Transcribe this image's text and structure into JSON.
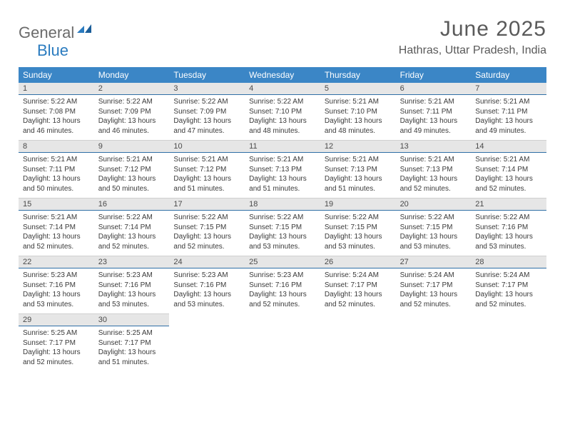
{
  "brand": {
    "general": "General",
    "blue": "Blue"
  },
  "title": "June 2025",
  "location": "Hathras, Uttar Pradesh, India",
  "colors": {
    "header_bg": "#3b86c6",
    "header_text": "#ffffff",
    "daynum_bg": "#e6e6e6",
    "rule": "#2f6fa6",
    "body_text": "#3a3a3a",
    "title_text": "#5a5a5a"
  },
  "weekdays": [
    "Sunday",
    "Monday",
    "Tuesday",
    "Wednesday",
    "Thursday",
    "Friday",
    "Saturday"
  ],
  "weeks": [
    [
      {
        "n": "1",
        "sr": "Sunrise: 5:22 AM",
        "ss": "Sunset: 7:08 PM",
        "dl1": "Daylight: 13 hours",
        "dl2": "and 46 minutes."
      },
      {
        "n": "2",
        "sr": "Sunrise: 5:22 AM",
        "ss": "Sunset: 7:09 PM",
        "dl1": "Daylight: 13 hours",
        "dl2": "and 46 minutes."
      },
      {
        "n": "3",
        "sr": "Sunrise: 5:22 AM",
        "ss": "Sunset: 7:09 PM",
        "dl1": "Daylight: 13 hours",
        "dl2": "and 47 minutes."
      },
      {
        "n": "4",
        "sr": "Sunrise: 5:22 AM",
        "ss": "Sunset: 7:10 PM",
        "dl1": "Daylight: 13 hours",
        "dl2": "and 48 minutes."
      },
      {
        "n": "5",
        "sr": "Sunrise: 5:21 AM",
        "ss": "Sunset: 7:10 PM",
        "dl1": "Daylight: 13 hours",
        "dl2": "and 48 minutes."
      },
      {
        "n": "6",
        "sr": "Sunrise: 5:21 AM",
        "ss": "Sunset: 7:11 PM",
        "dl1": "Daylight: 13 hours",
        "dl2": "and 49 minutes."
      },
      {
        "n": "7",
        "sr": "Sunrise: 5:21 AM",
        "ss": "Sunset: 7:11 PM",
        "dl1": "Daylight: 13 hours",
        "dl2": "and 49 minutes."
      }
    ],
    [
      {
        "n": "8",
        "sr": "Sunrise: 5:21 AM",
        "ss": "Sunset: 7:11 PM",
        "dl1": "Daylight: 13 hours",
        "dl2": "and 50 minutes."
      },
      {
        "n": "9",
        "sr": "Sunrise: 5:21 AM",
        "ss": "Sunset: 7:12 PM",
        "dl1": "Daylight: 13 hours",
        "dl2": "and 50 minutes."
      },
      {
        "n": "10",
        "sr": "Sunrise: 5:21 AM",
        "ss": "Sunset: 7:12 PM",
        "dl1": "Daylight: 13 hours",
        "dl2": "and 51 minutes."
      },
      {
        "n": "11",
        "sr": "Sunrise: 5:21 AM",
        "ss": "Sunset: 7:13 PM",
        "dl1": "Daylight: 13 hours",
        "dl2": "and 51 minutes."
      },
      {
        "n": "12",
        "sr": "Sunrise: 5:21 AM",
        "ss": "Sunset: 7:13 PM",
        "dl1": "Daylight: 13 hours",
        "dl2": "and 51 minutes."
      },
      {
        "n": "13",
        "sr": "Sunrise: 5:21 AM",
        "ss": "Sunset: 7:13 PM",
        "dl1": "Daylight: 13 hours",
        "dl2": "and 52 minutes."
      },
      {
        "n": "14",
        "sr": "Sunrise: 5:21 AM",
        "ss": "Sunset: 7:14 PM",
        "dl1": "Daylight: 13 hours",
        "dl2": "and 52 minutes."
      }
    ],
    [
      {
        "n": "15",
        "sr": "Sunrise: 5:21 AM",
        "ss": "Sunset: 7:14 PM",
        "dl1": "Daylight: 13 hours",
        "dl2": "and 52 minutes."
      },
      {
        "n": "16",
        "sr": "Sunrise: 5:22 AM",
        "ss": "Sunset: 7:14 PM",
        "dl1": "Daylight: 13 hours",
        "dl2": "and 52 minutes."
      },
      {
        "n": "17",
        "sr": "Sunrise: 5:22 AM",
        "ss": "Sunset: 7:15 PM",
        "dl1": "Daylight: 13 hours",
        "dl2": "and 52 minutes."
      },
      {
        "n": "18",
        "sr": "Sunrise: 5:22 AM",
        "ss": "Sunset: 7:15 PM",
        "dl1": "Daylight: 13 hours",
        "dl2": "and 53 minutes."
      },
      {
        "n": "19",
        "sr": "Sunrise: 5:22 AM",
        "ss": "Sunset: 7:15 PM",
        "dl1": "Daylight: 13 hours",
        "dl2": "and 53 minutes."
      },
      {
        "n": "20",
        "sr": "Sunrise: 5:22 AM",
        "ss": "Sunset: 7:15 PM",
        "dl1": "Daylight: 13 hours",
        "dl2": "and 53 minutes."
      },
      {
        "n": "21",
        "sr": "Sunrise: 5:22 AM",
        "ss": "Sunset: 7:16 PM",
        "dl1": "Daylight: 13 hours",
        "dl2": "and 53 minutes."
      }
    ],
    [
      {
        "n": "22",
        "sr": "Sunrise: 5:23 AM",
        "ss": "Sunset: 7:16 PM",
        "dl1": "Daylight: 13 hours",
        "dl2": "and 53 minutes."
      },
      {
        "n": "23",
        "sr": "Sunrise: 5:23 AM",
        "ss": "Sunset: 7:16 PM",
        "dl1": "Daylight: 13 hours",
        "dl2": "and 53 minutes."
      },
      {
        "n": "24",
        "sr": "Sunrise: 5:23 AM",
        "ss": "Sunset: 7:16 PM",
        "dl1": "Daylight: 13 hours",
        "dl2": "and 53 minutes."
      },
      {
        "n": "25",
        "sr": "Sunrise: 5:23 AM",
        "ss": "Sunset: 7:16 PM",
        "dl1": "Daylight: 13 hours",
        "dl2": "and 52 minutes."
      },
      {
        "n": "26",
        "sr": "Sunrise: 5:24 AM",
        "ss": "Sunset: 7:17 PM",
        "dl1": "Daylight: 13 hours",
        "dl2": "and 52 minutes."
      },
      {
        "n": "27",
        "sr": "Sunrise: 5:24 AM",
        "ss": "Sunset: 7:17 PM",
        "dl1": "Daylight: 13 hours",
        "dl2": "and 52 minutes."
      },
      {
        "n": "28",
        "sr": "Sunrise: 5:24 AM",
        "ss": "Sunset: 7:17 PM",
        "dl1": "Daylight: 13 hours",
        "dl2": "and 52 minutes."
      }
    ],
    [
      {
        "n": "29",
        "sr": "Sunrise: 5:25 AM",
        "ss": "Sunset: 7:17 PM",
        "dl1": "Daylight: 13 hours",
        "dl2": "and 52 minutes."
      },
      {
        "n": "30",
        "sr": "Sunrise: 5:25 AM",
        "ss": "Sunset: 7:17 PM",
        "dl1": "Daylight: 13 hours",
        "dl2": "and 51 minutes."
      },
      null,
      null,
      null,
      null,
      null
    ]
  ]
}
